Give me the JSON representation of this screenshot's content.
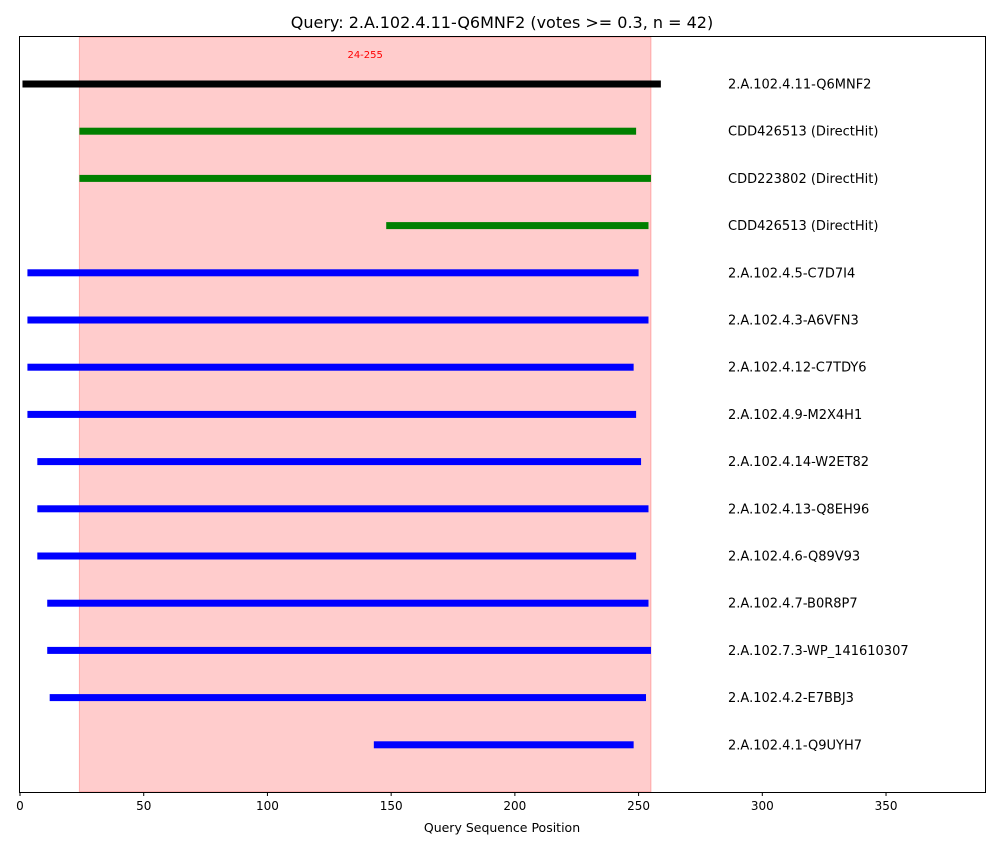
{
  "chart_data": {
    "type": "bar",
    "title": "Query: 2.A.102.4.11-Q6MNF2 (votes >= 0.3, n = 42)",
    "xlabel": "Query Sequence Position",
    "ylabel": "",
    "xlim": [
      0,
      390
    ],
    "xticks": [
      0,
      50,
      100,
      150,
      200,
      250,
      300,
      350
    ],
    "grid": false,
    "highlight": {
      "start": 24,
      "end": 255,
      "label": "24-255",
      "color": "#ff0000"
    },
    "colors": {
      "query": "#000000",
      "directhit": "#008000",
      "hit": "#0000ff"
    },
    "rows": [
      {
        "label": "2.A.102.4.11-Q6MNF2",
        "start": 1,
        "end": 259,
        "kind": "query"
      },
      {
        "label": "CDD426513 (DirectHit)",
        "start": 24,
        "end": 249,
        "kind": "directhit"
      },
      {
        "label": "CDD223802 (DirectHit)",
        "start": 24,
        "end": 255,
        "kind": "directhit"
      },
      {
        "label": "CDD426513 (DirectHit)",
        "start": 148,
        "end": 254,
        "kind": "directhit"
      },
      {
        "label": "2.A.102.4.5-C7D7I4",
        "start": 3,
        "end": 250,
        "kind": "hit"
      },
      {
        "label": "2.A.102.4.3-A6VFN3",
        "start": 3,
        "end": 254,
        "kind": "hit"
      },
      {
        "label": "2.A.102.4.12-C7TDY6",
        "start": 3,
        "end": 248,
        "kind": "hit"
      },
      {
        "label": "2.A.102.4.9-M2X4H1",
        "start": 3,
        "end": 249,
        "kind": "hit"
      },
      {
        "label": "2.A.102.4.14-W2ET82",
        "start": 7,
        "end": 251,
        "kind": "hit"
      },
      {
        "label": "2.A.102.4.13-Q8EH96",
        "start": 7,
        "end": 254,
        "kind": "hit"
      },
      {
        "label": "2.A.102.4.6-Q89V93",
        "start": 7,
        "end": 249,
        "kind": "hit"
      },
      {
        "label": "2.A.102.4.7-B0R8P7",
        "start": 11,
        "end": 254,
        "kind": "hit"
      },
      {
        "label": "2.A.102.7.3-WP_141610307",
        "start": 11,
        "end": 255,
        "kind": "hit"
      },
      {
        "label": "2.A.102.4.2-E7BBJ3",
        "start": 12,
        "end": 253,
        "kind": "hit"
      },
      {
        "label": "2.A.102.4.1-Q9UYH7",
        "start": 143,
        "end": 248,
        "kind": "hit"
      }
    ]
  }
}
